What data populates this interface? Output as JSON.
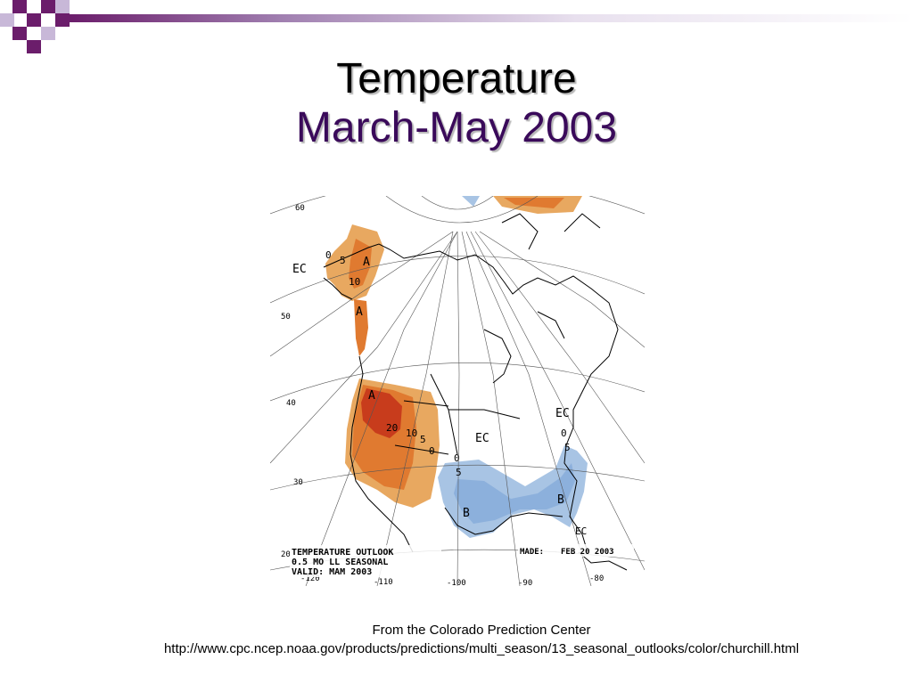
{
  "slide": {
    "title_line1": "Temperature",
    "title_line2": "March-May 2003",
    "colors": {
      "accent_purple": "#6b1d6b",
      "accent_light": "#c8b8d8",
      "title_purple": "#3a0a5a"
    }
  },
  "map": {
    "type": "temperature-outlook-map",
    "region": "North America",
    "legend_line1": "TEMPERATURE OUTLOOK",
    "legend_line2": "0.5 MO LL SEASONAL",
    "legend_line3": "VALID: MAM 2003",
    "made_label": "MADE:",
    "made_date": "FEB 20 2003",
    "lat_labels": [
      "60",
      "50",
      "40",
      "30",
      "20"
    ],
    "lon_labels": [
      "-120",
      "-110",
      "-100",
      "-90",
      "-80"
    ],
    "labels": {
      "ec_alaska": "EC",
      "a_alaska": "A",
      "a_coast": "A",
      "a_west": "A",
      "ec_central": "EC",
      "ec_northeast": "EC",
      "ec_florida": "EC",
      "b_texas": "B",
      "b_southeast": "B",
      "c_0_alaska": "0",
      "c_5_alaska": "5",
      "c_10_alaska": "10",
      "c_20_west": "20",
      "c_10_west": "10",
      "c_5_west": "5",
      "c_0_west": "0",
      "c_0_central": "0",
      "c_5_central": "5",
      "c_0_east": "0",
      "c_5_east": "5"
    },
    "colors": {
      "above_light": "#e8a860",
      "above_mid": "#e07a30",
      "above_dark": "#c83c1c",
      "below_light": "#a8c4e4",
      "below_mid": "#8cb0dc"
    }
  },
  "caption": {
    "line1": "From the Colorado Prediction Center",
    "line2": "http://www.cpc.ncep.noaa.gov/products/predictions/multi_season/13_seasonal_outlooks/color/churchill.html"
  }
}
